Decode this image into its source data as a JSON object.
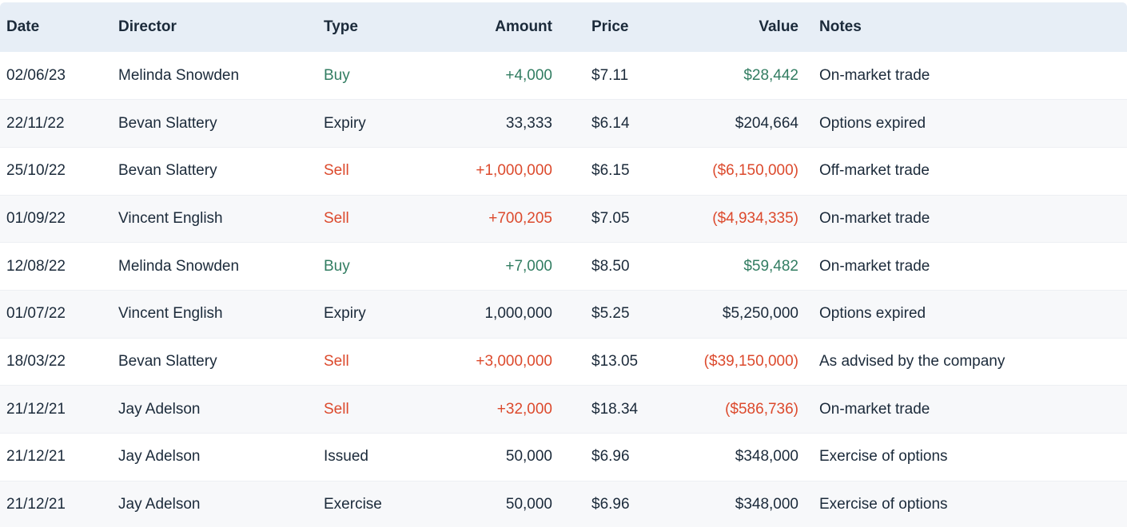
{
  "colors": {
    "text": "#1b2a3a",
    "positive": "#327d62",
    "negative": "#dc4a2d",
    "header_bg": "#e7eef6",
    "stripe_bg": "#f7f8fa",
    "row_border": "#edeff3"
  },
  "table": {
    "columns": [
      {
        "key": "date",
        "label": "Date",
        "align": "left"
      },
      {
        "key": "director",
        "label": "Director",
        "align": "left"
      },
      {
        "key": "type",
        "label": "Type",
        "align": "left"
      },
      {
        "key": "amount",
        "label": "Amount",
        "align": "right"
      },
      {
        "key": "price",
        "label": "Price",
        "align": "left"
      },
      {
        "key": "value",
        "label": "Value",
        "align": "right"
      },
      {
        "key": "notes",
        "label": "Notes",
        "align": "left"
      }
    ],
    "rows": [
      {
        "date": "02/06/23",
        "director": "Melinda Snowden",
        "type": "Buy",
        "tone": "buy",
        "amount": "+4,000",
        "price": "$7.11",
        "value": "$28,442",
        "notes": "On-market trade"
      },
      {
        "date": "22/11/22",
        "director": "Bevan Slattery",
        "type": "Expiry",
        "tone": "neutral",
        "amount": "33,333",
        "price": "$6.14",
        "value": "$204,664",
        "notes": "Options expired"
      },
      {
        "date": "25/10/22",
        "director": "Bevan Slattery",
        "type": "Sell",
        "tone": "sell",
        "amount": "+1,000,000",
        "price": "$6.15",
        "value": "($6,150,000)",
        "notes": "Off-market trade"
      },
      {
        "date": "01/09/22",
        "director": "Vincent English",
        "type": "Sell",
        "tone": "sell",
        "amount": "+700,205",
        "price": "$7.05",
        "value": "($4,934,335)",
        "notes": "On-market trade"
      },
      {
        "date": "12/08/22",
        "director": "Melinda Snowden",
        "type": "Buy",
        "tone": "buy",
        "amount": "+7,000",
        "price": "$8.50",
        "value": "$59,482",
        "notes": "On-market trade"
      },
      {
        "date": "01/07/22",
        "director": "Vincent English",
        "type": "Expiry",
        "tone": "neutral",
        "amount": "1,000,000",
        "price": "$5.25",
        "value": "$5,250,000",
        "notes": "Options expired"
      },
      {
        "date": "18/03/22",
        "director": "Bevan Slattery",
        "type": "Sell",
        "tone": "sell",
        "amount": "+3,000,000",
        "price": "$13.05",
        "value": "($39,150,000)",
        "notes": "As advised by the company"
      },
      {
        "date": "21/12/21",
        "director": "Jay Adelson",
        "type": "Sell",
        "tone": "sell",
        "amount": "+32,000",
        "price": "$18.34",
        "value": "($586,736)",
        "notes": "On-market trade"
      },
      {
        "date": "21/12/21",
        "director": "Jay Adelson",
        "type": "Issued",
        "tone": "neutral",
        "amount": "50,000",
        "price": "$6.96",
        "value": "$348,000",
        "notes": "Exercise of options"
      },
      {
        "date": "21/12/21",
        "director": "Jay Adelson",
        "type": "Exercise",
        "tone": "neutral",
        "amount": "50,000",
        "price": "$6.96",
        "value": "$348,000",
        "notes": "Exercise of options"
      }
    ]
  }
}
